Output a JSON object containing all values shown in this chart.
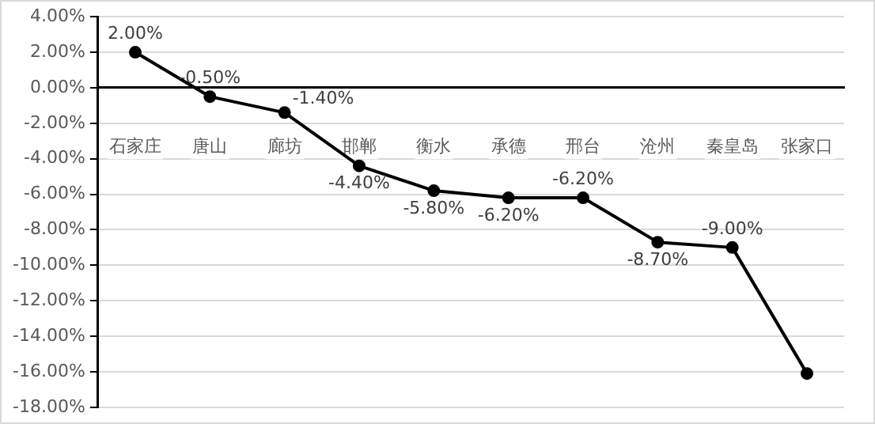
{
  "chart_data": {
    "type": "line",
    "categories": [
      "石家庄",
      "唐山",
      "廊坊",
      "邯郸",
      "衡水",
      "承德",
      "邢台",
      "沧州",
      "秦皇岛",
      "张家口"
    ],
    "series": [
      {
        "color": "#000000",
        "values": [
          2.0,
          -0.5,
          -1.4,
          -4.4,
          -5.8,
          -6.2,
          -6.2,
          -8.7,
          -9.0,
          -16.1
        ],
        "value_labels": [
          "2.00%",
          "-0.50%",
          "-1.40%",
          "-4.40%",
          "-5.80%",
          "-6.20%",
          "-6.20%",
          "-8.70%",
          "-9.00%",
          null
        ]
      }
    ],
    "ylim": [
      -18,
      4
    ],
    "yticks": [
      {
        "value": 4,
        "label": "4.00%"
      },
      {
        "value": 2,
        "label": "2.00%"
      },
      {
        "value": 0,
        "label": "0.00%"
      },
      {
        "value": -2,
        "label": "-2.00%"
      },
      {
        "value": -4,
        "label": "-4.00%"
      },
      {
        "value": -6,
        "label": "-6.00%"
      },
      {
        "value": -8,
        "label": "-8.00%"
      },
      {
        "value": -10,
        "label": "-10.00%"
      },
      {
        "value": -12,
        "label": "-12.00%"
      },
      {
        "value": -14,
        "label": "-14.00%"
      },
      {
        "value": -16,
        "label": "-16.00%"
      },
      {
        "value": -18,
        "label": "-18.00%"
      }
    ],
    "grid": "y",
    "marker": "circle",
    "line_style": "solid",
    "legend": false
  }
}
